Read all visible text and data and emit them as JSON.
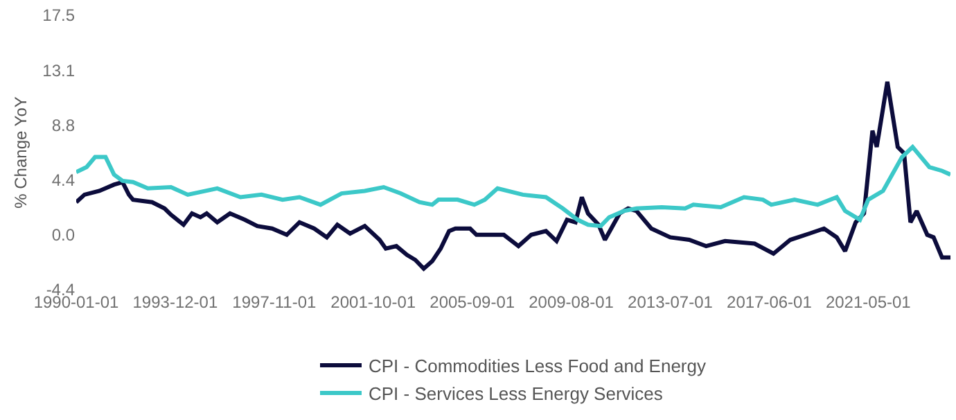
{
  "chart_data": {
    "type": "line",
    "ylabel": "% Change YoY",
    "xlim": [
      "1990-01-01",
      "2024-08-01"
    ],
    "xticks": [
      "1990-01-01",
      "1993-12-01",
      "1997-11-01",
      "2001-10-01",
      "2005-09-01",
      "2009-08-01",
      "2013-07-01",
      "2017-06-01",
      "2021-05-01"
    ],
    "ylim": [
      -4.375,
      17.5
    ],
    "yticks": [
      {
        "value": -4.375,
        "label": "-4.4"
      },
      {
        "value": 0,
        "label": "0.0"
      },
      {
        "value": 4.375,
        "label": "4.4"
      },
      {
        "value": 8.75,
        "label": "8.8"
      },
      {
        "value": 13.125,
        "label": "13.1"
      },
      {
        "value": 17.5,
        "label": "17.5"
      }
    ],
    "grid": false,
    "legend": "bottom",
    "series": [
      {
        "name": "CPI - Commodities Less Food and Energy",
        "color": "#0c0c3c",
        "x": [
          "1990-01",
          "1990-05",
          "1990-12",
          "1991-07",
          "1991-11",
          "1992-02",
          "1992-04",
          "1993-01",
          "1993-07",
          "1993-10",
          "1994-04",
          "1994-08",
          "1994-12",
          "1995-03",
          "1995-08",
          "1996-02",
          "1996-09",
          "1997-03",
          "1997-10",
          "1998-05",
          "1998-11",
          "1999-06",
          "1999-12",
          "2000-05",
          "2000-11",
          "2001-06",
          "2002-01",
          "2002-04",
          "2002-09",
          "2003-02",
          "2003-06",
          "2003-10",
          "2004-02",
          "2004-06",
          "2004-10",
          "2005-01",
          "2005-08",
          "2005-11",
          "2006-01",
          "2006-12",
          "2007-07",
          "2008-01",
          "2008-08",
          "2009-01",
          "2009-06",
          "2009-10",
          "2010-01",
          "2010-04",
          "2010-09",
          "2010-12",
          "2011-07",
          "2011-11",
          "2012-03",
          "2012-10",
          "2013-07",
          "2014-04",
          "2014-12",
          "2015-09",
          "2016-11",
          "2017-08",
          "2018-04",
          "2019-01",
          "2019-08",
          "2020-02",
          "2020-06",
          "2020-11",
          "2021-03",
          "2021-07",
          "2021-09",
          "2022-02",
          "2022-07",
          "2022-10",
          "2023-01",
          "2023-04",
          "2023-09",
          "2023-12",
          "2024-04",
          "2024-08"
        ],
        "values": [
          2.6,
          3.2,
          3.5,
          4.0,
          4.2,
          3.2,
          2.8,
          2.6,
          2.1,
          1.6,
          0.8,
          1.7,
          1.4,
          1.7,
          1.0,
          1.7,
          1.2,
          0.7,
          0.5,
          0.0,
          1.0,
          0.5,
          -0.2,
          0.8,
          0.1,
          0.7,
          -0.4,
          -1.1,
          -0.9,
          -1.6,
          -2.0,
          -2.7,
          -2.1,
          -1.1,
          0.3,
          0.5,
          0.5,
          0.0,
          0.0,
          0.0,
          -0.9,
          0.0,
          0.3,
          -0.5,
          1.2,
          1.0,
          3.0,
          1.7,
          0.8,
          -0.4,
          1.7,
          2.1,
          1.9,
          0.5,
          -0.2,
          -0.4,
          -0.9,
          -0.5,
          -0.7,
          -1.5,
          -0.4,
          0.1,
          0.5,
          -0.2,
          -1.3,
          1.0,
          1.7,
          8.3,
          7.0,
          12.2,
          7.0,
          6.5,
          1.0,
          1.9,
          0.0,
          -0.2,
          -1.8,
          -1.8
        ]
      },
      {
        "name": "CPI - Services Less Energy Services",
        "color": "#3cc8c8",
        "x": [
          "1990-01",
          "1990-06",
          "1990-10",
          "1991-03",
          "1991-07",
          "1991-11",
          "1992-04",
          "1992-11",
          "1993-10",
          "1994-06",
          "1995-08",
          "1996-07",
          "1997-05",
          "1998-03",
          "1998-11",
          "1999-09",
          "2000-07",
          "2001-06",
          "2002-03",
          "2002-11",
          "2003-08",
          "2004-02",
          "2004-05",
          "2005-02",
          "2005-10",
          "2006-03",
          "2006-09",
          "2007-09",
          "2008-08",
          "2009-04",
          "2009-11",
          "2010-04",
          "2010-10",
          "2011-02",
          "2011-09",
          "2012-03",
          "2013-03",
          "2014-02",
          "2014-06",
          "2015-07",
          "2016-06",
          "2017-03",
          "2017-07",
          "2018-06",
          "2019-05",
          "2020-02",
          "2020-06",
          "2021-01",
          "2021-05",
          "2021-12",
          "2022-09",
          "2023-02",
          "2023-10",
          "2024-04",
          "2024-08"
        ],
        "values": [
          5.0,
          5.4,
          6.2,
          6.2,
          4.8,
          4.3,
          4.2,
          3.7,
          3.8,
          3.2,
          3.7,
          3.0,
          3.2,
          2.8,
          3.0,
          2.4,
          3.3,
          3.5,
          3.8,
          3.3,
          2.6,
          2.4,
          2.8,
          2.8,
          2.4,
          2.8,
          3.7,
          3.2,
          3.0,
          2.1,
          1.2,
          0.8,
          0.7,
          1.4,
          1.9,
          2.1,
          2.2,
          2.1,
          2.4,
          2.2,
          3.0,
          2.8,
          2.4,
          2.8,
          2.4,
          3.0,
          1.9,
          1.2,
          2.8,
          3.5,
          6.2,
          7.0,
          5.4,
          5.1,
          4.8
        ]
      }
    ]
  }
}
